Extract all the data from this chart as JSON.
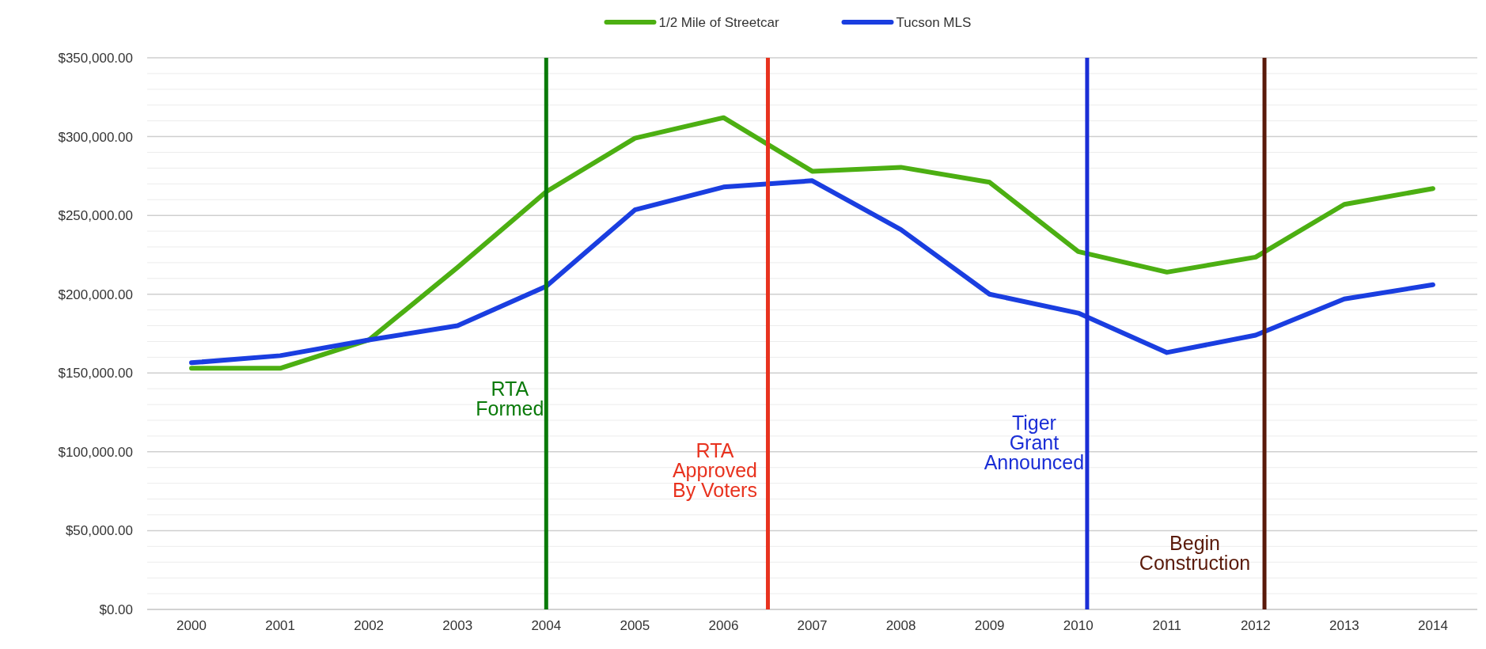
{
  "chart_data": {
    "type": "line",
    "x": [
      2000,
      2001,
      2002,
      2003,
      2004,
      2005,
      2006,
      2007,
      2008,
      2009,
      2010,
      2011,
      2012,
      2013,
      2014
    ],
    "series": [
      {
        "name": "1/2 Mile of Streetcar",
        "color": "#4caf12",
        "values": [
          153000,
          153000,
          171000,
          217000,
          265000,
          299000,
          312000,
          278000,
          280500,
          271000,
          227000,
          214000,
          223500,
          257000,
          267000
        ]
      },
      {
        "name": "Tucson MLS",
        "color": "#1a3ee0",
        "values": [
          156500,
          161000,
          171000,
          180000,
          205000,
          253500,
          268000,
          272000,
          241000,
          200000,
          188000,
          163000,
          174000,
          197000,
          206000
        ]
      }
    ],
    "xlim": [
      1999.5,
      2014.5
    ],
    "xticks": [
      2000,
      2001,
      2002,
      2003,
      2004,
      2005,
      2006,
      2007,
      2008,
      2009,
      2010,
      2011,
      2012,
      2013,
      2014
    ],
    "ylim": [
      0,
      350000
    ],
    "yticks": [
      {
        "value": 0,
        "label": "$0.00"
      },
      {
        "value": 10000,
        "label": null
      },
      {
        "value": 20000,
        "label": null
      },
      {
        "value": 30000,
        "label": null
      },
      {
        "value": 40000,
        "label": null
      },
      {
        "value": 50000,
        "label": "$50,000.00"
      },
      {
        "value": 60000,
        "label": null
      },
      {
        "value": 70000,
        "label": null
      },
      {
        "value": 80000,
        "label": null
      },
      {
        "value": 90000,
        "label": null
      },
      {
        "value": 100000,
        "label": "$100,000.00"
      },
      {
        "value": 110000,
        "label": null
      },
      {
        "value": 120000,
        "label": null
      },
      {
        "value": 130000,
        "label": null
      },
      {
        "value": 140000,
        "label": null
      },
      {
        "value": 150000,
        "label": "$150,000.00"
      },
      {
        "value": 160000,
        "label": null
      },
      {
        "value": 170000,
        "label": null
      },
      {
        "value": 180000,
        "label": null
      },
      {
        "value": 190000,
        "label": null
      },
      {
        "value": 200000,
        "label": "$200,000.00"
      },
      {
        "value": 210000,
        "label": null
      },
      {
        "value": 220000,
        "label": null
      },
      {
        "value": 230000,
        "label": null
      },
      {
        "value": 240000,
        "label": null
      },
      {
        "value": 250000,
        "label": "$250,000.00"
      },
      {
        "value": 260000,
        "label": null
      },
      {
        "value": 270000,
        "label": null
      },
      {
        "value": 280000,
        "label": null
      },
      {
        "value": 290000,
        "label": null
      },
      {
        "value": 300000,
        "label": "$300,000.00"
      },
      {
        "value": 310000,
        "label": null
      },
      {
        "value": 320000,
        "label": null
      },
      {
        "value": 330000,
        "label": null
      },
      {
        "value": 340000,
        "label": null
      },
      {
        "value": 350000,
        "label": "$350,000.00"
      }
    ],
    "ref_lines": [
      {
        "axis": "x",
        "value": 2004,
        "label": "RTA\nFormed",
        "color": "#0a7a0a"
      },
      {
        "axis": "x",
        "value": 2006.5,
        "label": "RTA\nApproved\nBy Voters",
        "color": "#e8321e"
      },
      {
        "axis": "x",
        "value": 2010.1,
        "label": "Tiger\nGrant\nAnnounced",
        "color": "#1a2ed6"
      },
      {
        "axis": "x",
        "value": 2012.1,
        "label": "Begin\nConstruction",
        "color": "#5a1a0a"
      }
    ],
    "grid": "y",
    "legend": "top",
    "line_style": "solid",
    "marker": "none"
  }
}
